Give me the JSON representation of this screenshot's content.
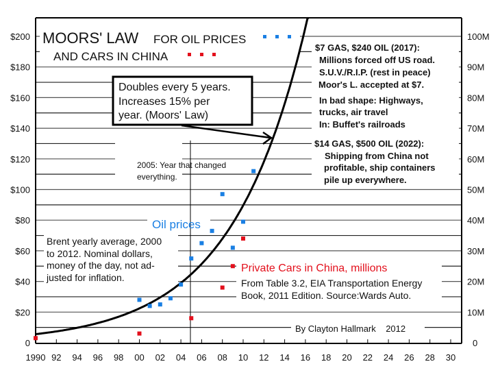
{
  "chart_data": {
    "type": "scatter",
    "title": "MOORS' LAW",
    "subtitle_1": "FOR OIL PRICES",
    "subtitle_2": "AND CARS IN CHINA",
    "x": {
      "range": [
        1990,
        2030
      ],
      "tick_values": [
        1990,
        1992,
        1994,
        1996,
        1998,
        2000,
        2002,
        2004,
        2006,
        2008,
        2010,
        2012,
        2014,
        2016,
        2018,
        2020,
        2022,
        2024,
        2026,
        2028,
        2030
      ],
      "tick_labels": [
        "1990",
        "92",
        "94",
        "96",
        "98",
        "00",
        "02",
        "04",
        "06",
        "08",
        "10",
        "12",
        "14",
        "16",
        "18",
        "20",
        "22",
        "24",
        "26",
        "28",
        "30"
      ]
    },
    "y_left": {
      "range": [
        0,
        210
      ],
      "tick_values": [
        0,
        20,
        40,
        60,
        80,
        100,
        120,
        140,
        160,
        180,
        200
      ],
      "tick_labels": [
        "0",
        "$20",
        "$40",
        "$60",
        "$80",
        "$100",
        "$120",
        "$140",
        "$160",
        "$180",
        "$200"
      ],
      "unit": "USD"
    },
    "y_right": {
      "range": [
        0,
        105
      ],
      "tick_values": [
        0,
        10,
        20,
        30,
        40,
        50,
        60,
        70,
        80,
        90,
        100
      ],
      "tick_labels": [
        "0",
        "10M",
        "20M",
        "30M",
        "40M",
        "50M",
        "60M",
        "70M",
        "80M",
        "90M",
        "100M"
      ],
      "unit": "millions of cars"
    },
    "grid": true,
    "series": [
      {
        "name": "Oil prices",
        "axis": "left",
        "color": "#1a7fe3",
        "x": [
          2000,
          2001,
          2002,
          2003,
          2004,
          2005,
          2006,
          2007,
          2008,
          2009,
          2010,
          2011
        ],
        "y": [
          28,
          24,
          25,
          29,
          38,
          55,
          65,
          73,
          97,
          62,
          79,
          112
        ]
      },
      {
        "name": "Private Cars in China, millions",
        "axis": "right",
        "color": "#e3101c",
        "x": [
          1990,
          2000,
          2005,
          2008,
          2009,
          2010
        ],
        "y": [
          1.5,
          3,
          8,
          18,
          25,
          34
        ]
      },
      {
        "name": "Moors' Law trend",
        "axis": "left",
        "type": "line",
        "color": "#000000",
        "formula": "y = 5.6 * 2^((x-1990)/5)",
        "base": 5.6,
        "doubling_years": 5,
        "x_start": 1990
      }
    ],
    "annotations": {
      "trend_box": [
        "Doubles every 5 years.",
        "Increases 15% per",
        "year. (Moors' Law)"
      ],
      "year_2005": [
        "2005: Year that changed",
        "everything."
      ],
      "oil_label": "Oil prices",
      "brent_note": [
        "Brent yearly average, 2000",
        "to 2012.  Nominal dollars,",
        "money of the day, not ad-",
        "justed for inflation."
      ],
      "cars_label": "Private Cars in China, millions",
      "source_note": [
        "From Table 3.2, EIA Transportation Energy",
        "Book, 2011 Edition.  Source:Wards Auto."
      ],
      "forecast_2017": [
        "$7 GAS, $240 OIL (2017):",
        "Millions forced off US road.",
        "S.U.V./R.I.P. (rest in peace)",
        "Moor's L. accepted at $7.",
        "In bad shape: Highways,",
        "trucks, air travel",
        "In: Buffet's railroads"
      ],
      "forecast_2022": [
        "$14 GAS, $500 OIL (2022):",
        "Shipping from China not",
        "profitable, ship containers",
        "pile up everywhere."
      ],
      "credit": "By Clayton Hallmark    2012"
    }
  }
}
